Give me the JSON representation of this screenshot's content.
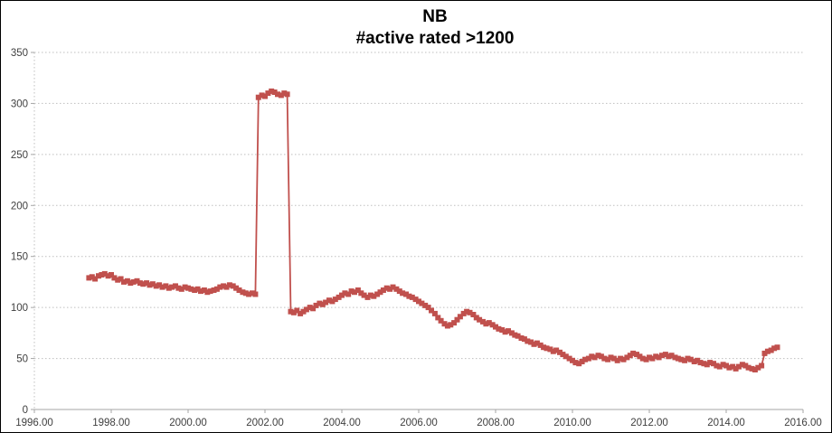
{
  "colors": {
    "series": "#C0504D",
    "gridline": "#BFBFBF",
    "axis_line": "#A6A6A6",
    "tick_text": "#404040",
    "title_text": "#000000",
    "background": "#FFFFFF",
    "frame_border": "#000000"
  },
  "chart_data": {
    "type": "line",
    "title": "NB",
    "subtitle": "#active rated >1200",
    "xlabel": "",
    "ylabel": "",
    "xlim": [
      1996,
      2016
    ],
    "ylim": [
      0,
      350
    ],
    "grid": true,
    "legend_position": "none",
    "x_tick_values": [
      1996,
      1998,
      2000,
      2002,
      2004,
      2006,
      2008,
      2010,
      2012,
      2014,
      2016
    ],
    "x_tick_labels": [
      "1996.00",
      "1998.00",
      "2000.00",
      "2002.00",
      "2004.00",
      "2006.00",
      "2008.00",
      "2010.00",
      "2012.00",
      "2014.00",
      "2016.00"
    ],
    "y_tick_values": [
      0,
      50,
      100,
      150,
      200,
      250,
      300,
      350
    ],
    "y_tick_labels": [
      "0",
      "50",
      "100",
      "150",
      "200",
      "250",
      "300",
      "350"
    ],
    "series": [
      {
        "name": "#active rated >1200",
        "marker": "square",
        "color": "#C0504D",
        "points": [
          [
            1997.42,
            129
          ],
          [
            1997.5,
            130
          ],
          [
            1997.58,
            128
          ],
          [
            1997.67,
            131
          ],
          [
            1997.75,
            132
          ],
          [
            1997.83,
            133
          ],
          [
            1997.92,
            131
          ],
          [
            1998,
            132
          ],
          [
            1998.08,
            129
          ],
          [
            1998.17,
            127
          ],
          [
            1998.25,
            128
          ],
          [
            1998.33,
            125
          ],
          [
            1998.42,
            126
          ],
          [
            1998.5,
            124
          ],
          [
            1998.58,
            125
          ],
          [
            1998.67,
            126
          ],
          [
            1998.75,
            124
          ],
          [
            1998.83,
            123
          ],
          [
            1998.92,
            124
          ],
          [
            1999,
            122
          ],
          [
            1999.08,
            123
          ],
          [
            1999.17,
            121
          ],
          [
            1999.25,
            122
          ],
          [
            1999.33,
            120
          ],
          [
            1999.42,
            121
          ],
          [
            1999.5,
            119
          ],
          [
            1999.58,
            120
          ],
          [
            1999.67,
            121
          ],
          [
            1999.75,
            119
          ],
          [
            1999.83,
            118
          ],
          [
            1999.92,
            120
          ],
          [
            2000,
            119
          ],
          [
            2000.08,
            118
          ],
          [
            2000.17,
            117
          ],
          [
            2000.25,
            118
          ],
          [
            2000.33,
            116
          ],
          [
            2000.42,
            117
          ],
          [
            2000.5,
            115
          ],
          [
            2000.58,
            116
          ],
          [
            2000.67,
            117
          ],
          [
            2000.75,
            118
          ],
          [
            2000.83,
            120
          ],
          [
            2000.92,
            121
          ],
          [
            2001,
            120
          ],
          [
            2001.08,
            122
          ],
          [
            2001.17,
            121
          ],
          [
            2001.25,
            119
          ],
          [
            2001.33,
            117
          ],
          [
            2001.42,
            115
          ],
          [
            2001.5,
            114
          ],
          [
            2001.58,
            113
          ],
          [
            2001.67,
            114
          ],
          [
            2001.75,
            113
          ],
          [
            2001.83,
            306
          ],
          [
            2001.92,
            308
          ],
          [
            2002,
            307
          ],
          [
            2002.08,
            310
          ],
          [
            2002.17,
            312
          ],
          [
            2002.25,
            311
          ],
          [
            2002.33,
            309
          ],
          [
            2002.42,
            308
          ],
          [
            2002.5,
            310
          ],
          [
            2002.58,
            309
          ],
          [
            2002.67,
            96
          ],
          [
            2002.75,
            95
          ],
          [
            2002.83,
            97
          ],
          [
            2002.92,
            94
          ],
          [
            2003,
            96
          ],
          [
            2003.08,
            98
          ],
          [
            2003.17,
            100
          ],
          [
            2003.25,
            99
          ],
          [
            2003.33,
            102
          ],
          [
            2003.42,
            104
          ],
          [
            2003.5,
            103
          ],
          [
            2003.58,
            105
          ],
          [
            2003.67,
            107
          ],
          [
            2003.75,
            106
          ],
          [
            2003.83,
            108
          ],
          [
            2003.92,
            110
          ],
          [
            2004,
            112
          ],
          [
            2004.08,
            114
          ],
          [
            2004.17,
            113
          ],
          [
            2004.25,
            116
          ],
          [
            2004.33,
            115
          ],
          [
            2004.42,
            117
          ],
          [
            2004.5,
            114
          ],
          [
            2004.58,
            112
          ],
          [
            2004.67,
            110
          ],
          [
            2004.75,
            112
          ],
          [
            2004.83,
            111
          ],
          [
            2004.92,
            113
          ],
          [
            2005,
            115
          ],
          [
            2005.08,
            117
          ],
          [
            2005.17,
            119
          ],
          [
            2005.25,
            118
          ],
          [
            2005.33,
            120
          ],
          [
            2005.42,
            118
          ],
          [
            2005.5,
            116
          ],
          [
            2005.58,
            114
          ],
          [
            2005.67,
            113
          ],
          [
            2005.75,
            111
          ],
          [
            2005.83,
            110
          ],
          [
            2005.92,
            108
          ],
          [
            2006,
            106
          ],
          [
            2006.08,
            104
          ],
          [
            2006.17,
            102
          ],
          [
            2006.25,
            100
          ],
          [
            2006.33,
            97
          ],
          [
            2006.42,
            94
          ],
          [
            2006.5,
            90
          ],
          [
            2006.58,
            87
          ],
          [
            2006.67,
            84
          ],
          [
            2006.75,
            82
          ],
          [
            2006.83,
            83
          ],
          [
            2006.92,
            85
          ],
          [
            2007,
            88
          ],
          [
            2007.08,
            91
          ],
          [
            2007.17,
            94
          ],
          [
            2007.25,
            96
          ],
          [
            2007.33,
            95
          ],
          [
            2007.42,
            93
          ],
          [
            2007.5,
            90
          ],
          [
            2007.58,
            88
          ],
          [
            2007.67,
            86
          ],
          [
            2007.75,
            84
          ],
          [
            2007.83,
            85
          ],
          [
            2007.92,
            83
          ],
          [
            2008,
            81
          ],
          [
            2008.08,
            79
          ],
          [
            2008.17,
            78
          ],
          [
            2008.25,
            76
          ],
          [
            2008.33,
            77
          ],
          [
            2008.42,
            75
          ],
          [
            2008.5,
            73
          ],
          [
            2008.58,
            72
          ],
          [
            2008.67,
            70
          ],
          [
            2008.75,
            69
          ],
          [
            2008.83,
            67
          ],
          [
            2008.92,
            66
          ],
          [
            2009,
            64
          ],
          [
            2009.08,
            65
          ],
          [
            2009.17,
            63
          ],
          [
            2009.25,
            61
          ],
          [
            2009.33,
            60
          ],
          [
            2009.42,
            59
          ],
          [
            2009.5,
            57
          ],
          [
            2009.58,
            58
          ],
          [
            2009.67,
            56
          ],
          [
            2009.75,
            54
          ],
          [
            2009.83,
            52
          ],
          [
            2009.92,
            50
          ],
          [
            2010,
            48
          ],
          [
            2010.08,
            46
          ],
          [
            2010.17,
            45
          ],
          [
            2010.25,
            47
          ],
          [
            2010.33,
            49
          ],
          [
            2010.42,
            50
          ],
          [
            2010.5,
            52
          ],
          [
            2010.58,
            51
          ],
          [
            2010.67,
            53
          ],
          [
            2010.75,
            52
          ],
          [
            2010.83,
            50
          ],
          [
            2010.92,
            49
          ],
          [
            2011,
            51
          ],
          [
            2011.08,
            50
          ],
          [
            2011.17,
            48
          ],
          [
            2011.25,
            50
          ],
          [
            2011.33,
            49
          ],
          [
            2011.42,
            51
          ],
          [
            2011.5,
            53
          ],
          [
            2011.58,
            55
          ],
          [
            2011.67,
            54
          ],
          [
            2011.75,
            52
          ],
          [
            2011.83,
            50
          ],
          [
            2011.92,
            49
          ],
          [
            2012,
            51
          ],
          [
            2012.08,
            50
          ],
          [
            2012.17,
            52
          ],
          [
            2012.25,
            51
          ],
          [
            2012.33,
            53
          ],
          [
            2012.42,
            54
          ],
          [
            2012.5,
            52
          ],
          [
            2012.58,
            53
          ],
          [
            2012.67,
            51
          ],
          [
            2012.75,
            50
          ],
          [
            2012.83,
            49
          ],
          [
            2012.92,
            48
          ],
          [
            2013,
            50
          ],
          [
            2013.08,
            49
          ],
          [
            2013.17,
            47
          ],
          [
            2013.25,
            48
          ],
          [
            2013.33,
            46
          ],
          [
            2013.42,
            45
          ],
          [
            2013.5,
            44
          ],
          [
            2013.58,
            46
          ],
          [
            2013.67,
            45
          ],
          [
            2013.75,
            43
          ],
          [
            2013.83,
            42
          ],
          [
            2013.92,
            44
          ],
          [
            2014,
            43
          ],
          [
            2014.08,
            41
          ],
          [
            2014.17,
            42
          ],
          [
            2014.25,
            40
          ],
          [
            2014.33,
            42
          ],
          [
            2014.42,
            44
          ],
          [
            2014.5,
            43
          ],
          [
            2014.58,
            41
          ],
          [
            2014.67,
            40
          ],
          [
            2014.75,
            39
          ],
          [
            2014.83,
            41
          ],
          [
            2014.92,
            43
          ],
          [
            2015,
            55
          ],
          [
            2015.08,
            57
          ],
          [
            2015.17,
            58
          ],
          [
            2015.25,
            60
          ],
          [
            2015.33,
            61
          ]
        ]
      }
    ]
  }
}
